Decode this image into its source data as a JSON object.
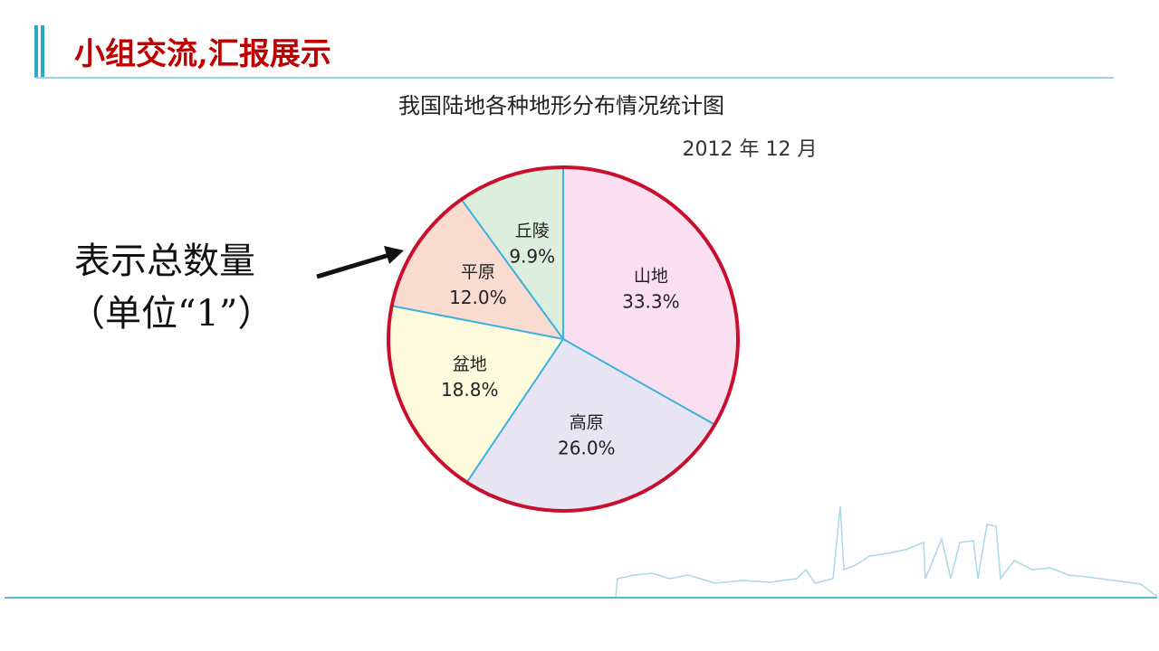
{
  "header": {
    "title": "小组交流,汇报展示"
  },
  "chart_data": {
    "type": "pie",
    "title": "我国陆地各种地形分布情况统计图",
    "subtitle": "2012 年 12 月",
    "categories": [
      "山地",
      "高原",
      "盆地",
      "平原",
      "丘陵"
    ],
    "values": [
      33.3,
      26.0,
      18.8,
      12.0,
      9.9
    ],
    "value_labels": [
      "33.3%",
      "26.0%",
      "18.8%",
      "12.0%",
      "9.9%"
    ],
    "colors": [
      "#f9dff0",
      "#e7e4f3",
      "#fdfbdc",
      "#f9dccf",
      "#dcefdc"
    ],
    "annotation": [
      "表示总数量",
      "（单位“1”）"
    ]
  }
}
